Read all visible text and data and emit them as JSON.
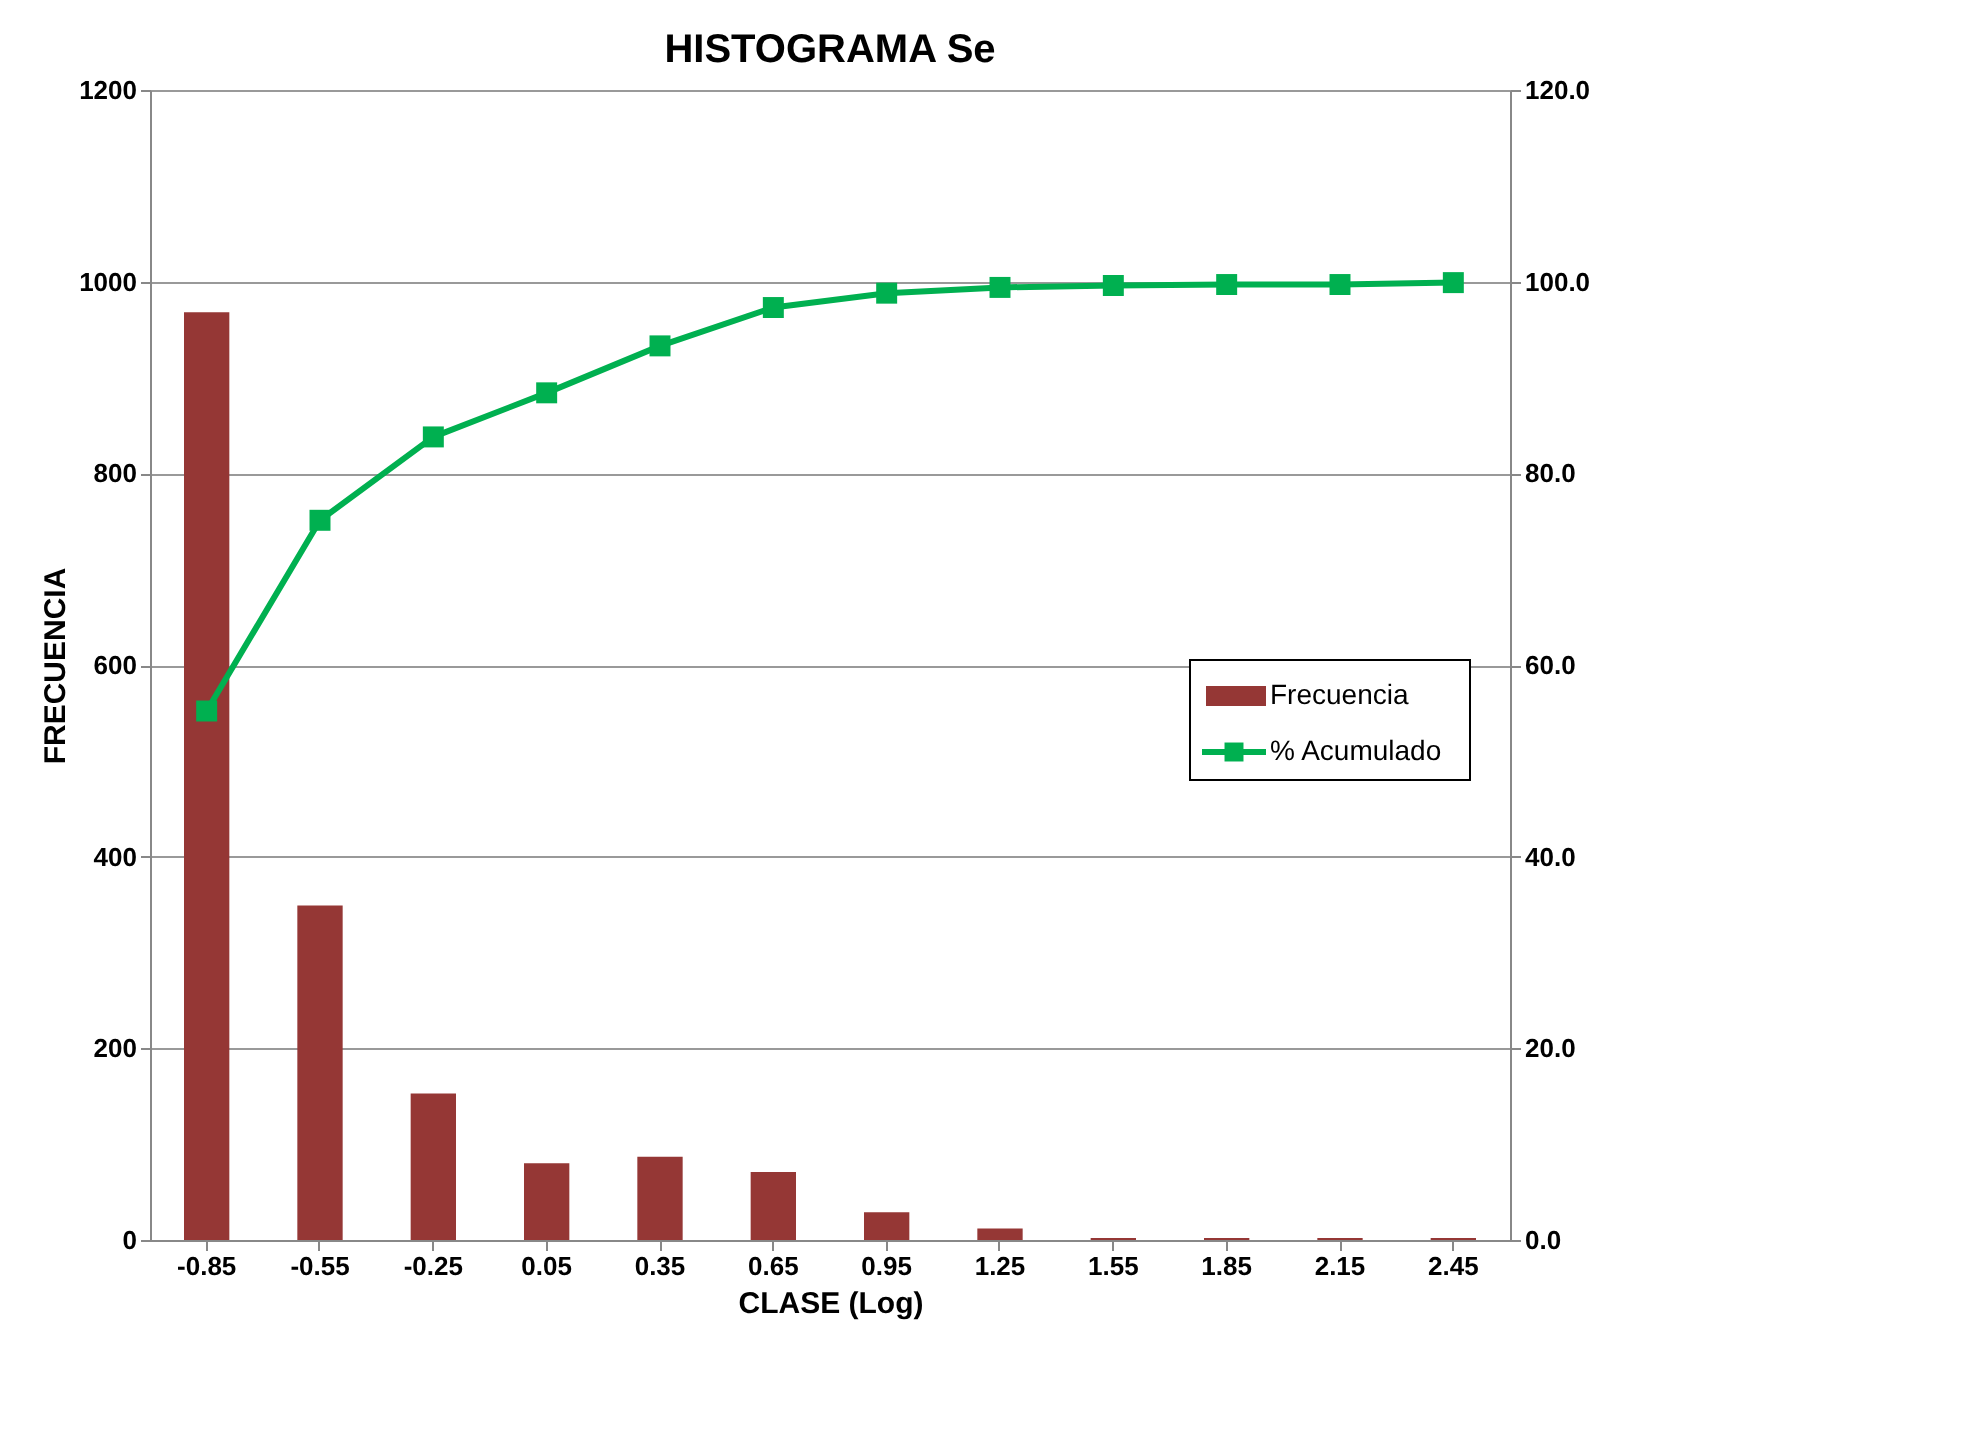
{
  "chart_data": {
    "type": "bar",
    "title": "HISTOGRAMA Se",
    "xlabel": "CLASE (Log)",
    "ylabel": "FRECUENCIA",
    "categories": [
      "-0.85",
      "-0.55",
      "-0.25",
      "0.05",
      "0.35",
      "0.65",
      "0.95",
      "1.25",
      "1.55",
      "1.85",
      "2.15",
      "2.45"
    ],
    "series": [
      {
        "name": "Frecuencia",
        "color": "#953735",
        "values": [
          968,
          349,
          153,
          80,
          87,
          71,
          29,
          12,
          2,
          2,
          2,
          2
        ]
      },
      {
        "name": "% Acumulado",
        "color": "#00b050",
        "type": "line",
        "axis": "y2",
        "marker": "square",
        "line_style": "solid",
        "values": [
          55.2,
          75.1,
          83.8,
          88.4,
          93.3,
          97.3,
          98.8,
          99.4,
          99.6,
          99.7,
          99.7,
          99.9
        ]
      }
    ],
    "ylim": [
      0,
      1200
    ],
    "yticks": [
      0,
      200,
      400,
      600,
      800,
      1000,
      1200
    ],
    "y2lim": [
      0,
      120
    ],
    "y2ticks": [
      {
        "value": 0,
        "label": "0.0"
      },
      {
        "value": 20,
        "label": "20.0"
      },
      {
        "value": 40,
        "label": "40.0"
      },
      {
        "value": 60,
        "label": "60.0"
      },
      {
        "value": 80,
        "label": "80.0"
      },
      {
        "value": 100,
        "label": "100.0"
      },
      {
        "value": 120,
        "label": "120.0"
      }
    ],
    "grid": "y",
    "legend": "bottom right"
  }
}
